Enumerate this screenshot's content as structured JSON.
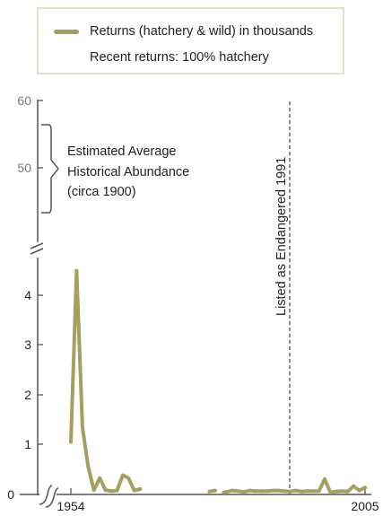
{
  "legend": {
    "series_label": "Returns (hatchery & wild) in thousands",
    "note": "Recent returns:  100% hatchery"
  },
  "annotations": {
    "historical_lines": [
      "Estimated Average",
      "Historical Abundance",
      "(circa 1900)"
    ],
    "endangered": "Listed as Endangered 1991"
  },
  "colors": {
    "series": "#a79f62",
    "axis": "#555555",
    "dashed_line": "#666666",
    "legend_border": "#e6dfc9"
  },
  "chart_data": {
    "type": "line",
    "x_tick_labels": [
      "1954",
      "2005"
    ],
    "xlim": [
      1954,
      2005
    ],
    "upper_axis": {
      "ticks": [
        50,
        60
      ],
      "range": [
        42,
        60
      ]
    },
    "lower_axis": {
      "ticks": [
        0,
        1,
        2,
        3,
        4
      ],
      "range": [
        0,
        4.8
      ]
    },
    "historical_range_thousands": [
      44,
      58
    ],
    "event_year": 1991,
    "series": [
      {
        "name": "Returns (hatchery & wild) in thousands",
        "segments": [
          [
            [
              1954,
              1.05
            ],
            [
              1955,
              4.5
            ],
            [
              1956,
              1.35
            ],
            [
              1957,
              0.55
            ],
            [
              1958,
              0.08
            ],
            [
              1959,
              0.32
            ],
            [
              1960,
              0.08
            ],
            [
              1961,
              0.06
            ],
            [
              1962,
              0.07
            ],
            [
              1963,
              0.38
            ],
            [
              1964,
              0.32
            ],
            [
              1965,
              0.07
            ],
            [
              1966,
              0.1
            ]
          ],
          [
            [
              1978,
              0.05
            ],
            [
              1979,
              0.07
            ]
          ],
          [
            [
              1980.5,
              0.03
            ],
            [
              1982,
              0.07
            ],
            [
              1983,
              0.06
            ],
            [
              1984,
              0.04
            ],
            [
              1985,
              0.07
            ],
            [
              1986,
              0.06
            ],
            [
              1987,
              0.06
            ],
            [
              1988,
              0.06
            ],
            [
              1989,
              0.07
            ],
            [
              1990,
              0.07
            ],
            [
              1991,
              0.06
            ],
            [
              1992,
              0.05
            ],
            [
              1993,
              0.07
            ],
            [
              1994,
              0.05
            ],
            [
              1995,
              0.06
            ],
            [
              1996,
              0.06
            ],
            [
              1997,
              0.06
            ],
            [
              1998,
              0.3
            ],
            [
              1999,
              0.03
            ],
            [
              2000,
              0.05
            ],
            [
              2001,
              0.06
            ],
            [
              2002,
              0.05
            ],
            [
              2003,
              0.16
            ],
            [
              2004,
              0.07
            ],
            [
              2005,
              0.13
            ]
          ]
        ]
      }
    ]
  }
}
